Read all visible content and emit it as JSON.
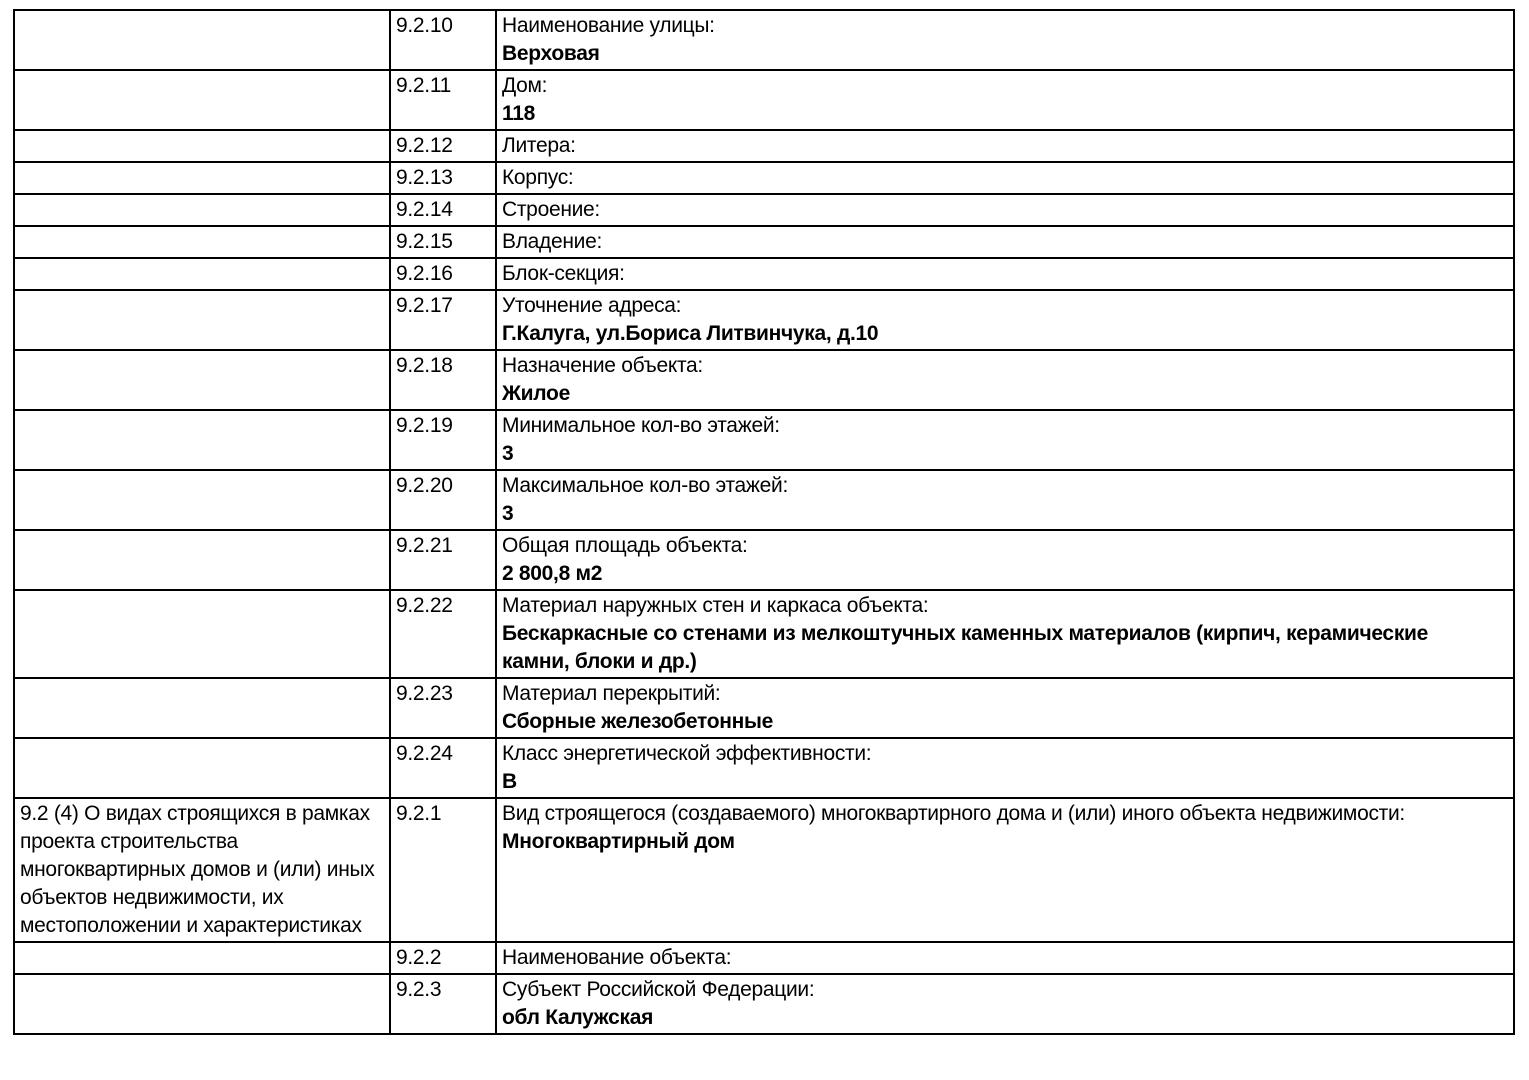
{
  "page": {
    "background_color": "#ffffff",
    "border_color": "#000000",
    "text_color": "#000000"
  },
  "table": {
    "columns": [
      "section-description",
      "item-number",
      "field-label-and-value"
    ],
    "rows": [
      {
        "section": "",
        "num": "9.2.10",
        "label": "Наименование улицы:",
        "value": "Верховая"
      },
      {
        "section": "",
        "num": "9.2.11",
        "label": "Дом:",
        "value": "118"
      },
      {
        "section": "",
        "num": "9.2.12",
        "label": "Литера:",
        "value": ""
      },
      {
        "section": "",
        "num": "9.2.13",
        "label": "Корпус:",
        "value": ""
      },
      {
        "section": "",
        "num": "9.2.14",
        "label": "Строение:",
        "value": ""
      },
      {
        "section": "",
        "num": "9.2.15",
        "label": "Владение:",
        "value": ""
      },
      {
        "section": "",
        "num": "9.2.16",
        "label": "Блок-секция:",
        "value": ""
      },
      {
        "section": "",
        "num": "9.2.17",
        "label": "Уточнение адреса:",
        "value": "Г.Калуга, ул.Бориса Литвинчука, д.10"
      },
      {
        "section": "",
        "num": "9.2.18",
        "label": "Назначение объекта:",
        "value": "Жилое"
      },
      {
        "section": "",
        "num": "9.2.19",
        "label": "Минимальное кол-во этажей:",
        "value": "3"
      },
      {
        "section": "",
        "num": "9.2.20",
        "label": "Максимальное кол-во этажей:",
        "value": "3"
      },
      {
        "section": "",
        "num": "9.2.21",
        "label": "Общая площадь объекта:",
        "value": "2 800,8 м2"
      },
      {
        "section": "",
        "num": "9.2.22",
        "label": "Материал наружных стен и каркаса объекта:",
        "value": "Бескаркасные со стенами из мелкоштучных каменных материалов (кирпич, керамические камни, блоки и др.)"
      },
      {
        "section": "",
        "num": "9.2.23",
        "label": "Материал перекрытий:",
        "value": "Сборные железобетонные"
      },
      {
        "section": "",
        "num": "9.2.24",
        "label": "Класс энергетической эффективности:",
        "value": "В"
      },
      {
        "section": "9.2 (4) О видах строящихся в рамках проекта строительства многоквартирных домов и (или) иных объектов недвижимости, их местоположении и характеристиках",
        "num": "9.2.1",
        "label": "Вид строящегося (создаваемого) многоквартирного дома и (или) иного объекта недвижимости:",
        "value": "Многоквартирный дом"
      },
      {
        "section": "",
        "num": "9.2.2",
        "label": "Наименование объекта:",
        "value": ""
      },
      {
        "section": "",
        "num": "9.2.3",
        "label": "Субъект Российской Федерации:",
        "value": "обл Калужская"
      }
    ]
  }
}
